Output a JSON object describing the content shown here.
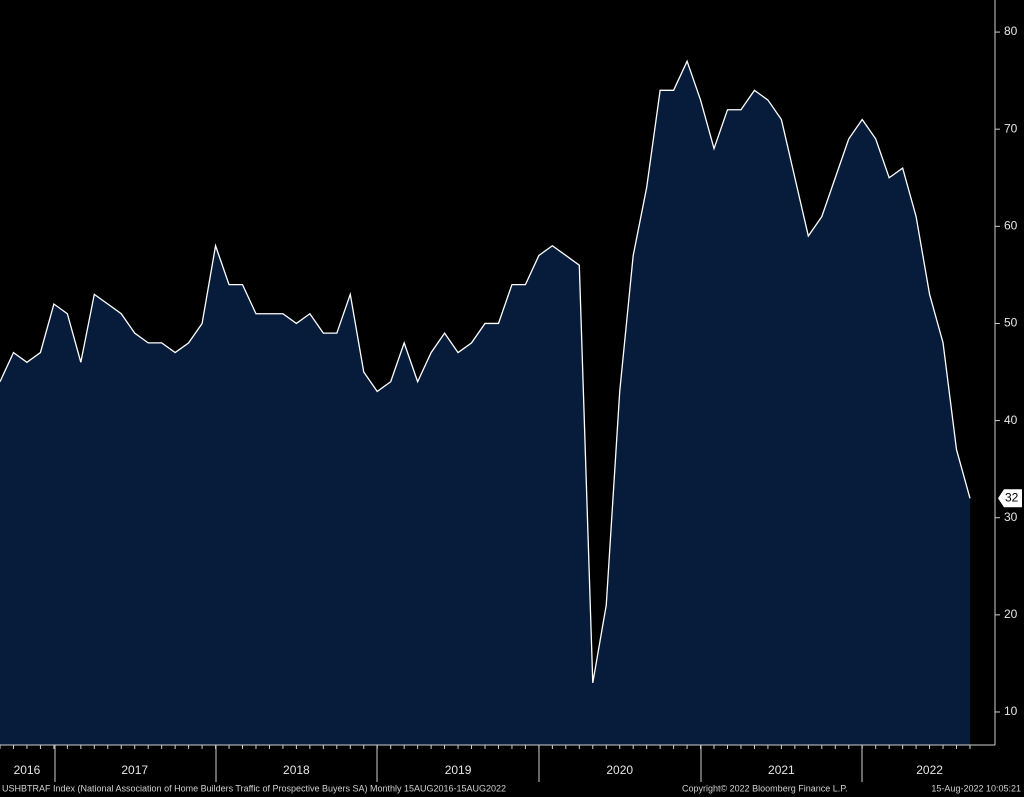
{
  "chart_data": {
    "type": "area",
    "categories": [
      null,
      null,
      "2016",
      null,
      null,
      null,
      null,
      null,
      null,
      null,
      "2017",
      null,
      null,
      null,
      null,
      null,
      null,
      null,
      null,
      null,
      null,
      null,
      "2018",
      null,
      null,
      null,
      null,
      null,
      null,
      null,
      null,
      null,
      null,
      null,
      "2019",
      null,
      null,
      null,
      null,
      null,
      null,
      null,
      null,
      null,
      null,
      null,
      "2020",
      null,
      null,
      null,
      null,
      null,
      null,
      null,
      null,
      null,
      null,
      null,
      "2021",
      null,
      null,
      null,
      null,
      null,
      null,
      null,
      null,
      null,
      null,
      "2022",
      null,
      null,
      null
    ],
    "series": [
      {
        "name": "USHBTRAF Index",
        "color": "#ffffff",
        "fill": "#061c3a",
        "values": [
          44,
          47,
          46,
          47,
          52,
          51,
          46,
          53,
          52,
          51,
          49,
          48,
          48,
          47,
          48,
          50,
          58,
          54,
          54,
          51,
          51,
          51,
          50,
          51,
          49,
          49,
          53,
          45,
          43,
          44,
          48,
          44,
          47,
          49,
          47,
          48,
          50,
          50,
          54,
          54,
          57,
          58,
          57,
          56,
          13,
          21,
          43,
          57,
          64,
          74,
          74,
          77,
          73,
          68,
          72,
          72,
          74,
          73,
          71,
          65,
          59,
          61,
          65,
          69,
          71,
          69,
          65,
          66,
          61,
          53,
          48,
          37,
          32
        ]
      }
    ],
    "ylim": [
      6.6,
      83.3
    ],
    "yticks": [
      10,
      20,
      30,
      40,
      50,
      60,
      70,
      80
    ],
    "footer": {
      "description": "USHBTRAF Index (National Association of Home Builders Traffic of Prospective Buyers SA)  Monthly 15AUG2016-15AUG2022",
      "copyright": "Copyright© 2022 Bloomberg Finance L.P.",
      "timestamp": "15-Aug-2022 10:05:21"
    }
  }
}
